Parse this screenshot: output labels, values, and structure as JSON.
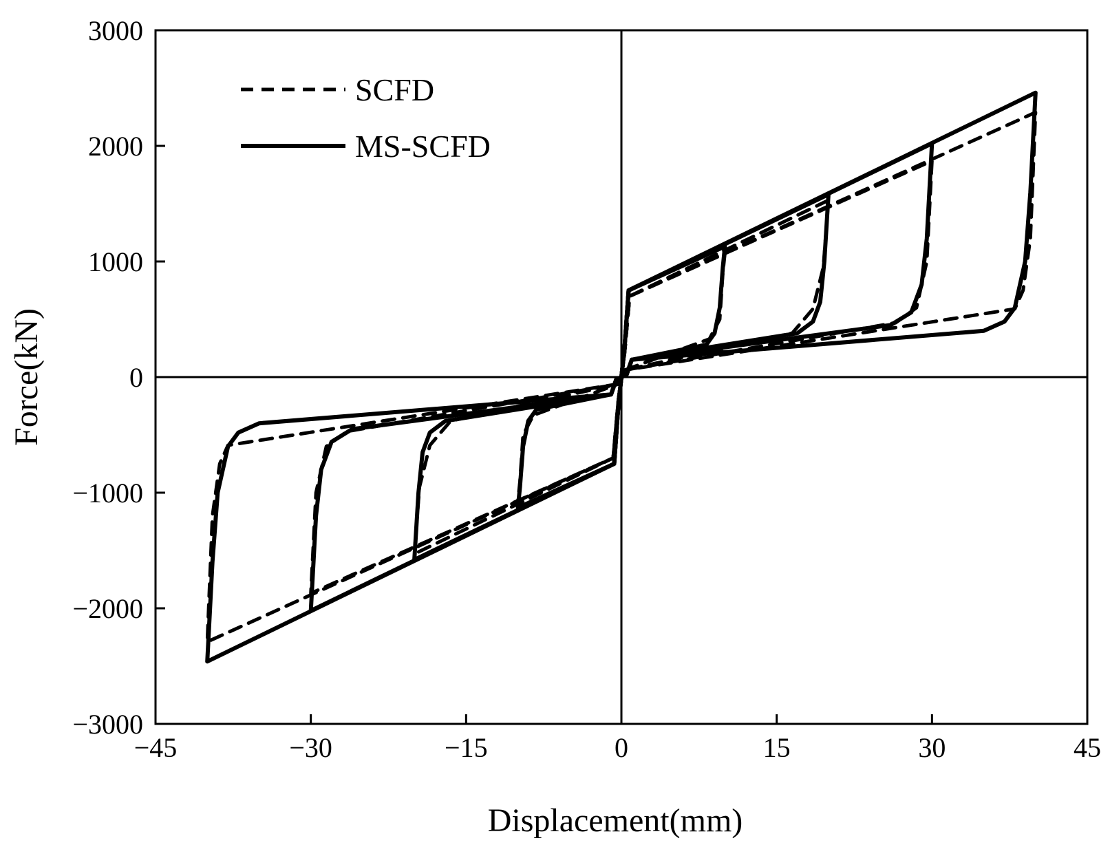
{
  "chart_data": {
    "type": "line",
    "title": "",
    "xlabel": "Displacement(mm)",
    "ylabel": "Force(kN)",
    "xlim": [
      -45,
      45
    ],
    "ylim": [
      -3000,
      3000
    ],
    "xticks": [
      -45,
      -30,
      -15,
      0,
      15,
      30,
      45
    ],
    "yticks": [
      -3000,
      -2000,
      -1000,
      0,
      1000,
      2000,
      3000
    ],
    "xtick_labels": [
      "−45",
      "−30",
      "−15",
      "0",
      "15",
      "30",
      "45"
    ],
    "ytick_labels": [
      "−3000",
      "−2000",
      "−1000",
      "0",
      "1000",
      "2000",
      "3000"
    ],
    "grid": false,
    "legend_position": "top-left",
    "series": [
      {
        "name": "SCFD",
        "style": "dashed",
        "color": "#000000",
        "loops": [
          [
            [
              0,
              0
            ],
            [
              0.3,
              200
            ],
            [
              0.8,
              700
            ],
            [
              10,
              1070
            ],
            [
              9.8,
              900
            ],
            [
              9.5,
              500
            ],
            [
              8.5,
              330
            ],
            [
              0.3,
              60
            ],
            [
              -0.3,
              -60
            ],
            [
              -8.5,
              -330
            ],
            [
              -9.5,
              -500
            ],
            [
              -9.8,
              -900
            ],
            [
              -10,
              -1070
            ],
            [
              -0.8,
              -700
            ],
            [
              -0.3,
              -200
            ],
            [
              0,
              0
            ]
          ],
          [
            [
              0,
              0
            ],
            [
              0.3,
              200
            ],
            [
              0.8,
              700
            ],
            [
              20,
              1530
            ],
            [
              19.5,
              950
            ],
            [
              18.5,
              590
            ],
            [
              16.5,
              380
            ],
            [
              0.3,
              60
            ],
            [
              -0.3,
              -60
            ],
            [
              -16.5,
              -380
            ],
            [
              -18.5,
              -590
            ],
            [
              -19.5,
              -950
            ],
            [
              -20,
              -1530
            ],
            [
              -0.8,
              -700
            ],
            [
              -0.3,
              -200
            ],
            [
              0,
              0
            ]
          ],
          [
            [
              0,
              0
            ],
            [
              0.3,
              200
            ],
            [
              0.8,
              700
            ],
            [
              30,
              1870
            ],
            [
              29.5,
              1000
            ],
            [
              28.5,
              600
            ],
            [
              26.5,
              470
            ],
            [
              0.3,
              60
            ],
            [
              -0.3,
              -60
            ],
            [
              -26.5,
              -470
            ],
            [
              -28.5,
              -600
            ],
            [
              -29.5,
              -1000
            ],
            [
              -30,
              -1870
            ],
            [
              -0.8,
              -700
            ],
            [
              -0.3,
              -200
            ],
            [
              0,
              0
            ]
          ],
          [
            [
              0,
              0
            ],
            [
              0.3,
              200
            ],
            [
              0.8,
              700
            ],
            [
              40,
              2290
            ],
            [
              39.5,
              1200
            ],
            [
              38.8,
              750
            ],
            [
              38,
              590
            ],
            [
              0.3,
              60
            ],
            [
              -0.3,
              -60
            ],
            [
              -38,
              -590
            ],
            [
              -38.8,
              -750
            ],
            [
              -39.5,
              -1200
            ],
            [
              -40,
              -2290
            ],
            [
              -0.8,
              -700
            ],
            [
              -0.3,
              -200
            ],
            [
              0,
              0
            ]
          ]
        ]
      },
      {
        "name": "MS-SCFD",
        "style": "solid",
        "color": "#000000",
        "loops": [
          [
            [
              0,
              0
            ],
            [
              0.3,
              250
            ],
            [
              0.7,
              750
            ],
            [
              10,
              1130
            ],
            [
              9.8,
              950
            ],
            [
              9.5,
              600
            ],
            [
              9,
              380
            ],
            [
              8.2,
              280
            ],
            [
              1,
              150
            ],
            [
              0.5,
              20
            ],
            [
              -0.5,
              -20
            ],
            [
              -1,
              -150
            ],
            [
              -8.2,
              -280
            ],
            [
              -9,
              -380
            ],
            [
              -9.5,
              -600
            ],
            [
              -9.8,
              -950
            ],
            [
              -10,
              -1130
            ],
            [
              -0.7,
              -750
            ],
            [
              -0.3,
              -250
            ],
            [
              0,
              0
            ]
          ],
          [
            [
              0,
              0
            ],
            [
              0.3,
              250
            ],
            [
              0.7,
              750
            ],
            [
              20,
              1580
            ],
            [
              19.6,
              1000
            ],
            [
              19.2,
              650
            ],
            [
              18.5,
              480
            ],
            [
              17,
              380
            ],
            [
              1,
              150
            ],
            [
              0.5,
              20
            ],
            [
              -0.5,
              -20
            ],
            [
              -1,
              -150
            ],
            [
              -17,
              -380
            ],
            [
              -18.5,
              -480
            ],
            [
              -19.2,
              -650
            ],
            [
              -19.6,
              -1000
            ],
            [
              -20,
              -1580
            ],
            [
              -0.7,
              -750
            ],
            [
              -0.3,
              -250
            ],
            [
              0,
              0
            ]
          ],
          [
            [
              0,
              0
            ],
            [
              0.3,
              250
            ],
            [
              0.7,
              750
            ],
            [
              30,
              2020
            ],
            [
              29.5,
              1200
            ],
            [
              29,
              800
            ],
            [
              28,
              560
            ],
            [
              26,
              450
            ],
            [
              1,
              150
            ],
            [
              0.5,
              20
            ],
            [
              -0.5,
              -20
            ],
            [
              -1,
              -150
            ],
            [
              -26,
              -450
            ],
            [
              -28,
              -560
            ],
            [
              -29,
              -800
            ],
            [
              -29.5,
              -1200
            ],
            [
              -30,
              -2020
            ],
            [
              -0.7,
              -750
            ],
            [
              -0.3,
              -250
            ],
            [
              0,
              0
            ]
          ],
          [
            [
              0,
              0
            ],
            [
              0.3,
              250
            ],
            [
              0.7,
              750
            ],
            [
              40,
              2460
            ],
            [
              39.5,
              1600
            ],
            [
              39,
              1000
            ],
            [
              38,
              600
            ],
            [
              37,
              480
            ],
            [
              35,
              400
            ],
            [
              1,
              150
            ],
            [
              0.5,
              20
            ],
            [
              -0.5,
              -20
            ],
            [
              -1,
              -150
            ],
            [
              -35,
              -400
            ],
            [
              -37,
              -480
            ],
            [
              -38,
              -600
            ],
            [
              -39,
              -1000
            ],
            [
              -39.5,
              -1600
            ],
            [
              -40,
              -2460
            ],
            [
              -0.7,
              -750
            ],
            [
              -0.3,
              -250
            ],
            [
              0,
              0
            ]
          ]
        ]
      }
    ]
  }
}
